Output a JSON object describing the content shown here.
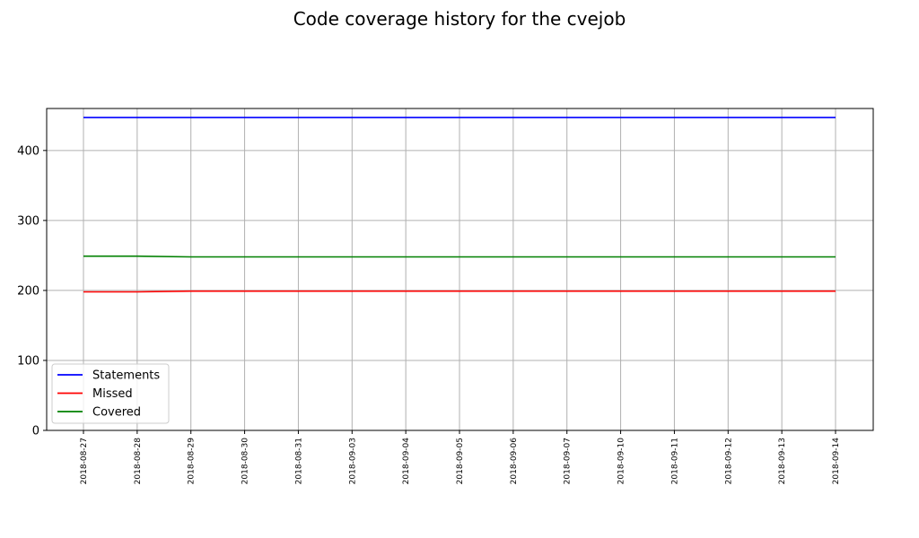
{
  "chart_data": {
    "type": "line",
    "title": "Code coverage history for the cvejob",
    "xlabel": "",
    "ylabel": "",
    "x": [
      "2018-08-27",
      "2018-08-28",
      "2018-08-29",
      "2018-08-30",
      "2018-08-31",
      "2018-09-03",
      "2018-09-04",
      "2018-09-05",
      "2018-09-06",
      "2018-09-07",
      "2018-09-10",
      "2018-09-11",
      "2018-09-12",
      "2018-09-13",
      "2018-09-14"
    ],
    "ylim": [
      0,
      460
    ],
    "yticks": [
      0,
      100,
      200,
      300,
      400
    ],
    "grid": true,
    "legend_position": "lower-left",
    "series": [
      {
        "name": "Statements",
        "color": "#0000ff",
        "values": [
          447,
          447,
          447,
          447,
          447,
          447,
          447,
          447,
          447,
          447,
          447,
          447,
          447,
          447,
          447
        ]
      },
      {
        "name": "Missed",
        "color": "#ff0000",
        "values": [
          198,
          198,
          199,
          199,
          199,
          199,
          199,
          199,
          199,
          199,
          199,
          199,
          199,
          199,
          199
        ]
      },
      {
        "name": "Covered",
        "color": "#008000",
        "values": [
          249,
          249,
          248,
          248,
          248,
          248,
          248,
          248,
          248,
          248,
          248,
          248,
          248,
          248,
          248
        ]
      }
    ]
  }
}
